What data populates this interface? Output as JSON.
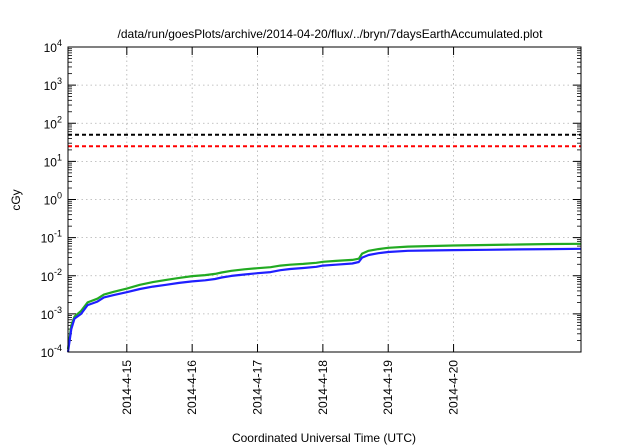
{
  "chart_data": {
    "type": "line",
    "title": "/data/run/goesPlots/archive/2014-04-20/flux/../bryn/7daysEarthAccumulated.plot",
    "xlabel": "Coordinated Universal Time (UTC)",
    "ylabel": "cGy",
    "yscale": "log",
    "ylim_exponents": [
      -4,
      4
    ],
    "y_ticks": [
      {
        "base": "10",
        "exp": "-4"
      },
      {
        "base": "10",
        "exp": "-3"
      },
      {
        "base": "10",
        "exp": "-2"
      },
      {
        "base": "10",
        "exp": "-1"
      },
      {
        "base": "10",
        "exp": "0"
      },
      {
        "base": "10",
        "exp": "1"
      },
      {
        "base": "10",
        "exp": "2"
      },
      {
        "base": "10",
        "exp": "3"
      },
      {
        "base": "10",
        "exp": "4"
      }
    ],
    "x_tick_labels": [
      "2014-4-15",
      "2014-4-16",
      "2014-4-17",
      "2014-4-18",
      "2014-4-19",
      "2014-4-20"
    ],
    "x_range_days": [
      -0.9,
      6.95
    ],
    "grid": true,
    "thresholds": [
      {
        "value": 50,
        "color": "#000000",
        "dash": "dashed"
      },
      {
        "value": 25,
        "color": "#ff0000",
        "dash": "dashed"
      }
    ],
    "series": [
      {
        "color": "#22aa22",
        "points": [
          [
            -0.9,
            0.00012
          ],
          [
            -0.85,
            0.0005
          ],
          [
            -0.8,
            0.00085
          ],
          [
            -0.7,
            0.0012
          ],
          [
            -0.6,
            0.002
          ],
          [
            -0.45,
            0.0025
          ],
          [
            -0.35,
            0.0032
          ],
          [
            -0.2,
            0.0038
          ],
          [
            0,
            0.0046
          ],
          [
            0.2,
            0.0058
          ],
          [
            0.4,
            0.0068
          ],
          [
            0.6,
            0.0078
          ],
          [
            0.8,
            0.0088
          ],
          [
            1.0,
            0.0098
          ],
          [
            1.2,
            0.0104
          ],
          [
            1.35,
            0.0112
          ],
          [
            1.45,
            0.0122
          ],
          [
            1.6,
            0.0135
          ],
          [
            1.8,
            0.0148
          ],
          [
            2.0,
            0.0158
          ],
          [
            2.2,
            0.0168
          ],
          [
            2.35,
            0.0185
          ],
          [
            2.5,
            0.0195
          ],
          [
            2.7,
            0.0205
          ],
          [
            2.9,
            0.0218
          ],
          [
            3.0,
            0.0232
          ],
          [
            3.2,
            0.0245
          ],
          [
            3.45,
            0.026
          ],
          [
            3.55,
            0.028
          ],
          [
            3.6,
            0.038
          ],
          [
            3.7,
            0.045
          ],
          [
            3.85,
            0.05
          ],
          [
            4.0,
            0.054
          ],
          [
            4.3,
            0.058
          ],
          [
            4.6,
            0.06
          ],
          [
            5.0,
            0.062
          ],
          [
            5.5,
            0.064
          ],
          [
            6.0,
            0.066
          ],
          [
            6.5,
            0.068
          ],
          [
            6.95,
            0.069
          ]
        ]
      },
      {
        "color": "#1f1fff",
        "points": [
          [
            -0.9,
            0.0001
          ],
          [
            -0.85,
            0.0004
          ],
          [
            -0.8,
            0.00075
          ],
          [
            -0.7,
            0.001
          ],
          [
            -0.6,
            0.0017
          ],
          [
            -0.45,
            0.0021
          ],
          [
            -0.35,
            0.0027
          ],
          [
            -0.2,
            0.0031
          ],
          [
            0,
            0.0037
          ],
          [
            0.2,
            0.0045
          ],
          [
            0.4,
            0.0052
          ],
          [
            0.6,
            0.0058
          ],
          [
            0.8,
            0.0065
          ],
          [
            1.0,
            0.0071
          ],
          [
            1.2,
            0.0076
          ],
          [
            1.35,
            0.0082
          ],
          [
            1.45,
            0.009
          ],
          [
            1.6,
            0.0099
          ],
          [
            1.8,
            0.0108
          ],
          [
            2.0,
            0.0117
          ],
          [
            2.2,
            0.0125
          ],
          [
            2.35,
            0.014
          ],
          [
            2.5,
            0.015
          ],
          [
            2.7,
            0.016
          ],
          [
            2.9,
            0.0172
          ],
          [
            3.0,
            0.0185
          ],
          [
            3.2,
            0.0195
          ],
          [
            3.45,
            0.021
          ],
          [
            3.55,
            0.023
          ],
          [
            3.6,
            0.03
          ],
          [
            3.7,
            0.035
          ],
          [
            3.85,
            0.039
          ],
          [
            4.0,
            0.042
          ],
          [
            4.3,
            0.045
          ],
          [
            4.6,
            0.046
          ],
          [
            5.0,
            0.047
          ],
          [
            5.5,
            0.048
          ],
          [
            6.0,
            0.049
          ],
          [
            6.5,
            0.05
          ],
          [
            6.95,
            0.051
          ]
        ]
      }
    ]
  }
}
